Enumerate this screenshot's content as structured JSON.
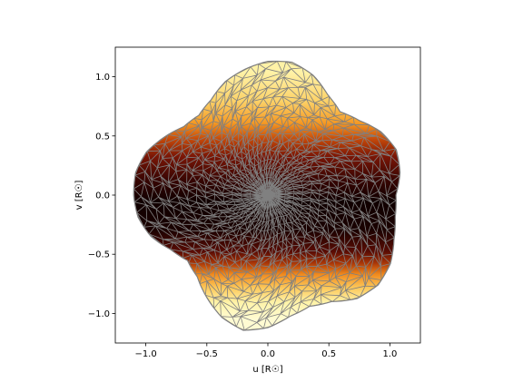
{
  "chart_data": {
    "type": "mesh-surface",
    "title": "",
    "xlabel": "u [R☉]",
    "ylabel": "v [R☉]",
    "xlim": [
      -1.25,
      1.25
    ],
    "ylim": [
      -1.25,
      1.25
    ],
    "xticks": [
      -1.0,
      -0.5,
      0.0,
      0.5,
      1.0
    ],
    "yticks": [
      -1.0,
      -0.5,
      0.0,
      0.5,
      1.0
    ],
    "xtick_labels": [
      "−1.0",
      "−0.5",
      "0.0",
      "0.5",
      "1.0"
    ],
    "ytick_labels": [
      "−1.0",
      "−0.5",
      "0.0",
      "0.5",
      "1.0"
    ],
    "grid": false,
    "colormap": "afmhot",
    "mesh_color": "#808080",
    "outline_radius": [
      [
        0,
        1.05
      ],
      [
        10,
        1.1
      ],
      [
        20,
        1.12
      ],
      [
        30,
        1.07
      ],
      [
        40,
        0.98
      ],
      [
        50,
        0.92
      ],
      [
        60,
        0.98
      ],
      [
        70,
        1.08
      ],
      [
        80,
        1.14
      ],
      [
        90,
        1.13
      ],
      [
        100,
        1.08
      ],
      [
        110,
        1.02
      ],
      [
        120,
        0.93
      ],
      [
        130,
        0.88
      ],
      [
        140,
        0.9
      ],
      [
        150,
        0.98
      ],
      [
        160,
        1.06
      ],
      [
        170,
        1.1
      ],
      [
        180,
        1.1
      ],
      [
        190,
        1.08
      ],
      [
        200,
        1.02
      ],
      [
        210,
        0.92
      ],
      [
        220,
        0.86
      ],
      [
        230,
        0.9
      ],
      [
        240,
        1.0
      ],
      [
        250,
        1.1
      ],
      [
        260,
        1.16
      ],
      [
        270,
        1.12
      ],
      [
        280,
        1.04
      ],
      [
        290,
        1.0
      ],
      [
        300,
        1.04
      ],
      [
        310,
        1.14
      ],
      [
        320,
        1.18
      ],
      [
        330,
        1.16
      ],
      [
        340,
        1.1
      ],
      [
        350,
        1.06
      ]
    ],
    "brightness_bands": [
      {
        "v": 1.1,
        "color": "#fff2a6"
      },
      {
        "v": 0.85,
        "color": "#fcd36a"
      },
      {
        "v": 0.65,
        "color": "#f59a24"
      },
      {
        "v": 0.5,
        "color": "#c2470a"
      },
      {
        "v": 0.35,
        "color": "#7a1606"
      },
      {
        "v": 0.15,
        "color": "#3a0603"
      },
      {
        "v": -0.05,
        "color": "#100000"
      },
      {
        "v": -0.3,
        "color": "#1a0201"
      },
      {
        "v": -0.5,
        "color": "#5a0c04"
      },
      {
        "v": -0.6,
        "color": "#a93608"
      },
      {
        "v": -0.7,
        "color": "#f08a1e"
      },
      {
        "v": -0.82,
        "color": "#fcc85a"
      },
      {
        "v": -0.95,
        "color": "#fff3a8"
      },
      {
        "v": -1.1,
        "color": "#fffbd2"
      }
    ]
  }
}
